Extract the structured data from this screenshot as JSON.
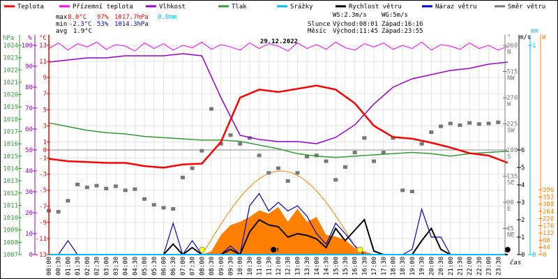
{
  "chart_data": {
    "type": "line",
    "title": "29.12.2022",
    "xlabel": "čas",
    "legend": [
      {
        "label": "Teplota",
        "color": "#ff0000"
      },
      {
        "label": "Přízemní teplota",
        "color": "#ff00ff"
      },
      {
        "label": "Vlhkost",
        "color": "#9900cc"
      },
      {
        "label": "Tlak",
        "color": "#339933"
      },
      {
        "label": "Srážky",
        "color": "#00bbff"
      },
      {
        "label": "Rychlost větru",
        "color": "#000000"
      },
      {
        "label": "Náraz větru",
        "color": "#0000cc"
      },
      {
        "label": "Směr větru",
        "color": "#777777"
      }
    ],
    "stats": {
      "max_label": "max",
      "min_label": "min",
      "avg_label": "avg",
      "max_temp": "8.0°C",
      "max_hum": "97%",
      "max_press": "1017.7hPa",
      "max_rain": "0.0mm",
      "min_temp": "-2.3°C",
      "min_hum": "53%",
      "min_press": "1014.3hPa",
      "avg_temp": "1.9°C",
      "ws": "WS:2.3m/s",
      "wg": "WG:5m/s",
      "sun_label": "Slunce",
      "sun_rise": "Východ:08:01",
      "sun_set": "Západ:16:16",
      "moon_label": "Měsíc",
      "moon_rise": "Východ:11:45",
      "moon_set": "Západ:23:55"
    },
    "axes": {
      "pressure": {
        "unit": "hPa",
        "range": [
          1007,
          1024
        ],
        "ticks": [
          "1024",
          "1023",
          "1022",
          "1021",
          "1020",
          "1019",
          "1018",
          "1017",
          "1016",
          "1015",
          "1014",
          "1013",
          "1012",
          "1011",
          "1010",
          "1009",
          "1008",
          "1007"
        ]
      },
      "humidity": {
        "unit": "%",
        "range": [
          0,
          100
        ],
        "ticks": [
          "100",
          "90",
          "80",
          "70",
          "60",
          "50",
          "40",
          "30",
          "20",
          "10",
          "0"
        ]
      },
      "temperature": {
        "unit": "°C",
        "range": [
          -13,
          13
        ],
        "ticks": [
          "13",
          "11",
          "9",
          "7",
          "5",
          "3",
          "1",
          "0",
          "-1",
          "-3",
          "-5",
          "-7",
          "-9",
          "-11",
          "-13"
        ]
      },
      "direction": {
        "unit": "°",
        "range": [
          0,
          360
        ],
        "ticks": [
          {
            "v": "360",
            "d": "N"
          },
          {
            "v": "315",
            "d": "NW"
          },
          {
            "v": "270",
            "d": "W"
          },
          {
            "v": "225",
            "d": "SW"
          },
          {
            "v": "180",
            "d": "S"
          },
          {
            "v": "135",
            "d": "SE"
          },
          {
            "v": "90",
            "d": "E"
          },
          {
            "v": "45",
            "d": "NE"
          }
        ]
      },
      "wind": {
        "unit": "m/s",
        "range": [
          0,
          6
        ],
        "ticks": [
          "6",
          "5",
          "4",
          "3",
          "2",
          "1",
          "0"
        ]
      },
      "rain": {
        "unit": "mm",
        "range": [
          0,
          1
        ],
        "ticks": [
          "1",
          "0"
        ]
      },
      "solar": {
        "unit": "W",
        "range": [
          0,
          396
        ],
        "ticks": [
          "396",
          "352",
          "308",
          "264",
          "220",
          "176",
          "132",
          "88",
          "44",
          "0"
        ]
      }
    },
    "x_ticks": [
      "00:00",
      "00:30",
      "01:00",
      "01:30",
      "02:00",
      "02:30",
      "03:00",
      "03:30",
      "04:00",
      "04:30",
      "05:00",
      "05:30",
      "06:00",
      "06:30",
      "07:00",
      "07:30",
      "08:00",
      "08:30",
      "09:00",
      "09:30",
      "10:00",
      "10:30",
      "11:00",
      "11:30",
      "12:00",
      "12:30",
      "13:00",
      "13:30",
      "14:00",
      "14:30",
      "15:00",
      "15:30",
      "16:00",
      "16:30",
      "17:00",
      "17:30",
      "18:00",
      "18:30",
      "19:00",
      "19:30",
      "20:00",
      "20:30",
      "21:00",
      "21:30",
      "22:00",
      "22:30",
      "23:00",
      "23:30"
    ],
    "x_range_hours": [
      0,
      24
    ],
    "series": {
      "temperature_hourly": [
        -1.1,
        -1.4,
        -1.5,
        -1.6,
        -1.6,
        -2.0,
        -2.2,
        -1.8,
        -1.7,
        1.0,
        6.5,
        7.5,
        7.2,
        7.6,
        8.0,
        7.5,
        5.8,
        3.0,
        1.6,
        1.4,
        0.9,
        0.3,
        -0.4,
        -0.7,
        -1.6
      ],
      "feels_like_halfhourly": [
        12.6,
        13.3,
        12.4,
        13.2,
        12.8,
        13.4,
        12.5,
        13.1,
        12.9,
        12.3,
        13.3,
        12.6,
        13.2,
        12.4,
        13.0,
        12.7,
        13.4,
        12.5,
        13.1,
        12.8,
        12.4,
        13.3,
        12.6,
        13.2,
        12.9,
        12.3,
        13.3,
        12.6,
        13.1,
        12.5,
        13.4,
        12.7,
        12.4,
        13.2,
        12.8,
        13.3,
        12.5,
        13.0,
        12.6,
        13.4,
        12.4,
        13.1,
        12.9,
        12.5,
        13.3,
        12.6,
        13.0,
        12.4,
        12.9
      ],
      "humidity_hourly": [
        92,
        93,
        94,
        94,
        95,
        95,
        95,
        96,
        95,
        75,
        57,
        55,
        54,
        54,
        53,
        56,
        62,
        72,
        80,
        84,
        86,
        88,
        89,
        91,
        92
      ],
      "pressure_hourly": [
        1017.7,
        1017.4,
        1017.1,
        1016.9,
        1016.8,
        1016.6,
        1016.5,
        1016.4,
        1016.3,
        1016.3,
        1016.2,
        1015.9,
        1015.6,
        1015.2,
        1015.0,
        1014.9,
        1015.0,
        1015.1,
        1015.2,
        1015.3,
        1015.2,
        1015.0,
        1015.2,
        1015.3,
        1015.4
      ],
      "rain_halfhourly_mm": 0,
      "wind_speed_halfhourly": [
        0,
        0,
        0,
        0,
        0,
        0,
        0,
        0,
        0,
        0,
        0,
        0,
        0,
        0.6,
        0,
        0.4,
        0,
        0,
        0,
        0.3,
        0,
        1.3,
        2.0,
        1.7,
        1.6,
        1.0,
        1.2,
        1.1,
        0.9,
        0.4,
        1.5,
        0.8,
        1.4,
        2.0,
        0.2,
        0,
        0,
        0,
        0,
        0.8,
        1.5,
        0.3,
        0,
        0,
        0,
        0,
        0,
        0,
        0
      ],
      "wind_gust_halfhourly": [
        0,
        0,
        0.8,
        0,
        0,
        0,
        0,
        0,
        0,
        0,
        0,
        0,
        0,
        1.8,
        0,
        0.8,
        0,
        0,
        0,
        0.5,
        0,
        2.8,
        3.5,
        2.5,
        3.0,
        2.5,
        2.8,
        2.2,
        1.2,
        0.6,
        1.8,
        1.2,
        0.5,
        0,
        0,
        0,
        0,
        0,
        0.3,
        2.6,
        1.0,
        1.0,
        0,
        0,
        0,
        0,
        0,
        0,
        0
      ],
      "solar_halfhourly_W": [
        0,
        0,
        0,
        0,
        0,
        0,
        0,
        0,
        0,
        0,
        0,
        0,
        0,
        0,
        0,
        0,
        0,
        20,
        120,
        180,
        200,
        230,
        270,
        250,
        290,
        200,
        280,
        200,
        230,
        120,
        110,
        90,
        40,
        20,
        0,
        0,
        0,
        0,
        0,
        0,
        0,
        0,
        0,
        0,
        0,
        0,
        0,
        0,
        0
      ],
      "solar_theoretical_peak_W": 510,
      "wind_direction_points": [
        [
          0,
          75
        ],
        [
          0.5,
          73
        ],
        [
          1,
          92
        ],
        [
          1.5,
          120
        ],
        [
          2,
          115
        ],
        [
          2.5,
          118
        ],
        [
          3,
          113
        ],
        [
          3.5,
          117
        ],
        [
          4,
          110
        ],
        [
          4.5,
          112
        ],
        [
          5,
          95
        ],
        [
          5.5,
          85
        ],
        [
          6,
          80
        ],
        [
          6.5,
          78
        ],
        [
          7,
          132
        ],
        [
          7.5,
          148
        ],
        [
          8,
          178
        ],
        [
          8.5,
          250
        ],
        [
          9,
          190
        ],
        [
          9.5,
          205
        ],
        [
          10,
          190
        ],
        [
          10.5,
          200
        ],
        [
          11,
          170
        ],
        [
          11.5,
          140
        ],
        [
          12,
          148
        ],
        [
          12.5,
          126
        ],
        [
          13,
          140
        ],
        [
          13.5,
          168
        ],
        [
          14,
          170
        ],
        [
          14.5,
          160
        ],
        [
          15,
          128
        ],
        [
          15.5,
          150
        ],
        [
          16,
          175
        ],
        [
          16.5,
          200
        ],
        [
          17,
          160
        ],
        [
          17.5,
          175
        ],
        [
          18,
          200
        ],
        [
          18.5,
          110
        ],
        [
          19,
          108
        ],
        [
          19.5,
          190
        ],
        [
          20,
          210
        ],
        [
          20.5,
          220
        ],
        [
          21,
          225
        ],
        [
          21.5,
          222
        ],
        [
          22,
          226
        ],
        [
          22.5,
          224
        ],
        [
          23,
          225
        ],
        [
          23.5,
          227
        ]
      ]
    },
    "events": {
      "sunrise_h": 8.02,
      "sunset_h": 16.27,
      "moonrise_h": 11.75,
      "moonset_h": 23.92
    }
  }
}
